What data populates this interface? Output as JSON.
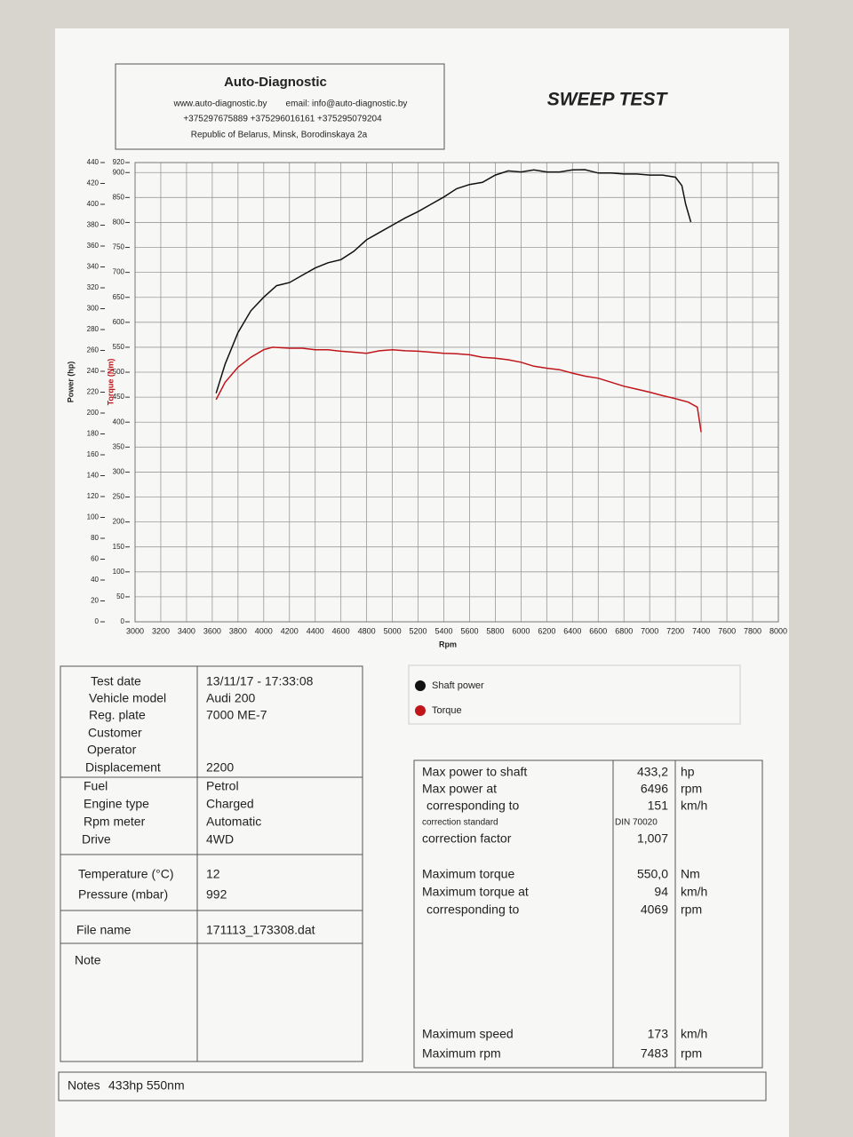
{
  "header": {
    "company": "Auto-Diagnostic",
    "website": "www.auto-diagnostic.by",
    "email": "email: info@auto-diagnostic.by",
    "phones": "+375297675889 +375296016161 +375295079204",
    "address": "Republic of Belarus, Minsk, Borodinskaya 2a"
  },
  "title": "SWEEP TEST",
  "chart_data": {
    "type": "line",
    "x_label": "Rpm",
    "y_label": "Power (hp)",
    "y2_label": "Torque (Nm)",
    "xlim": [
      3000,
      8000
    ],
    "xticks": [
      3000,
      3200,
      3400,
      3600,
      3800,
      4000,
      4200,
      4400,
      4600,
      4800,
      5000,
      5200,
      5400,
      5600,
      5800,
      6000,
      6200,
      6400,
      6600,
      6800,
      7000,
      7200,
      7400,
      7600,
      7800,
      8000
    ],
    "ylim": [
      0,
      440
    ],
    "yticks": [
      0,
      20,
      40,
      60,
      80,
      100,
      120,
      140,
      160,
      180,
      200,
      220,
      240,
      260,
      280,
      300,
      320,
      340,
      360,
      380,
      400,
      420,
      440
    ],
    "y2lim": [
      0,
      920
    ],
    "y2ticks": [
      0,
      50,
      100,
      150,
      200,
      250,
      300,
      350,
      400,
      450,
      500,
      550,
      600,
      650,
      700,
      750,
      800,
      850,
      900,
      920
    ],
    "grid": true,
    "series": [
      {
        "name": "Shaft power",
        "color": "#111111",
        "x": [
          3630,
          3700,
          3800,
          3900,
          4000,
          4100,
          4200,
          4300,
          4400,
          4500,
          4600,
          4700,
          4800,
          4900,
          5000,
          5100,
          5200,
          5300,
          5400,
          5500,
          5600,
          5700,
          5800,
          5900,
          6000,
          6100,
          6200,
          6300,
          6400,
          6496,
          6600,
          6700,
          6800,
          6900,
          7000,
          7100,
          7200,
          7250,
          7280,
          7320
        ],
        "values": [
          219,
          247,
          277,
          298,
          311,
          322,
          325,
          332,
          339,
          344,
          347,
          355,
          366,
          373,
          380,
          387,
          393,
          400,
          407,
          415,
          419,
          421,
          428,
          432,
          431,
          433,
          431,
          431,
          433,
          433.2,
          430,
          430,
          429,
          429,
          428,
          428,
          426,
          418,
          400,
          383
        ]
      },
      {
        "name": "Torque",
        "color": "#c0151a",
        "axis": "y2",
        "x": [
          3630,
          3700,
          3800,
          3900,
          4000,
          4069,
          4200,
          4300,
          4400,
          4500,
          4600,
          4700,
          4800,
          4900,
          5000,
          5100,
          5200,
          5300,
          5400,
          5500,
          5600,
          5700,
          5800,
          5900,
          6000,
          6100,
          6200,
          6300,
          6400,
          6500,
          6600,
          6700,
          6800,
          6900,
          7000,
          7100,
          7200,
          7300,
          7370,
          7400
        ],
        "values": [
          445,
          480,
          510,
          530,
          545,
          550,
          548,
          548,
          545,
          545,
          542,
          540,
          538,
          543,
          545,
          543,
          542,
          540,
          538,
          537,
          535,
          530,
          528,
          525,
          520,
          512,
          508,
          505,
          498,
          492,
          488,
          480,
          472,
          466,
          460,
          453,
          447,
          440,
          430,
          380
        ]
      }
    ]
  },
  "vehicle_table": {
    "rows": [
      [
        "Test date",
        "13/11/17 - 17:33:08"
      ],
      [
        "Vehicle model",
        "Audi 200"
      ],
      [
        "Reg. plate",
        "7000 ME-7"
      ],
      [
        "Customer"
      ],
      [
        "Operator"
      ],
      [
        "Displacement",
        "2200"
      ],
      [
        "Fuel",
        "Petrol"
      ],
      [
        "Engine type",
        "Charged"
      ],
      [
        "Rpm meter",
        "Automatic"
      ],
      [
        "Drive",
        "4WD"
      ],
      [
        "Temperature (°C)",
        "12"
      ],
      [
        "Pressure (mbar)",
        "992"
      ],
      [
        "File name",
        "171113_173308.dat"
      ],
      [
        "Note"
      ]
    ]
  },
  "results_table": {
    "rows": [
      [
        "Max power to shaft",
        "433,2",
        "hp"
      ],
      [
        "Max power at",
        "6496",
        "rpm"
      ],
      [
        "corresponding to",
        "151",
        "km/h"
      ],
      [
        "correction standard",
        "DIN 70020"
      ],
      [
        "correction factor",
        "1,007"
      ],
      [
        "Maximum torque",
        "550,0",
        "Nm"
      ],
      [
        "Maximum torque at",
        "94",
        "km/h"
      ],
      [
        "corresponding to",
        "4069",
        "rpm"
      ],
      [
        "Maximum speed",
        "173",
        "km/h"
      ],
      [
        "Maximum rpm",
        "7483",
        "rpm"
      ]
    ]
  },
  "notes": {
    "label": "Notes",
    "text": "433hp 550nm"
  }
}
